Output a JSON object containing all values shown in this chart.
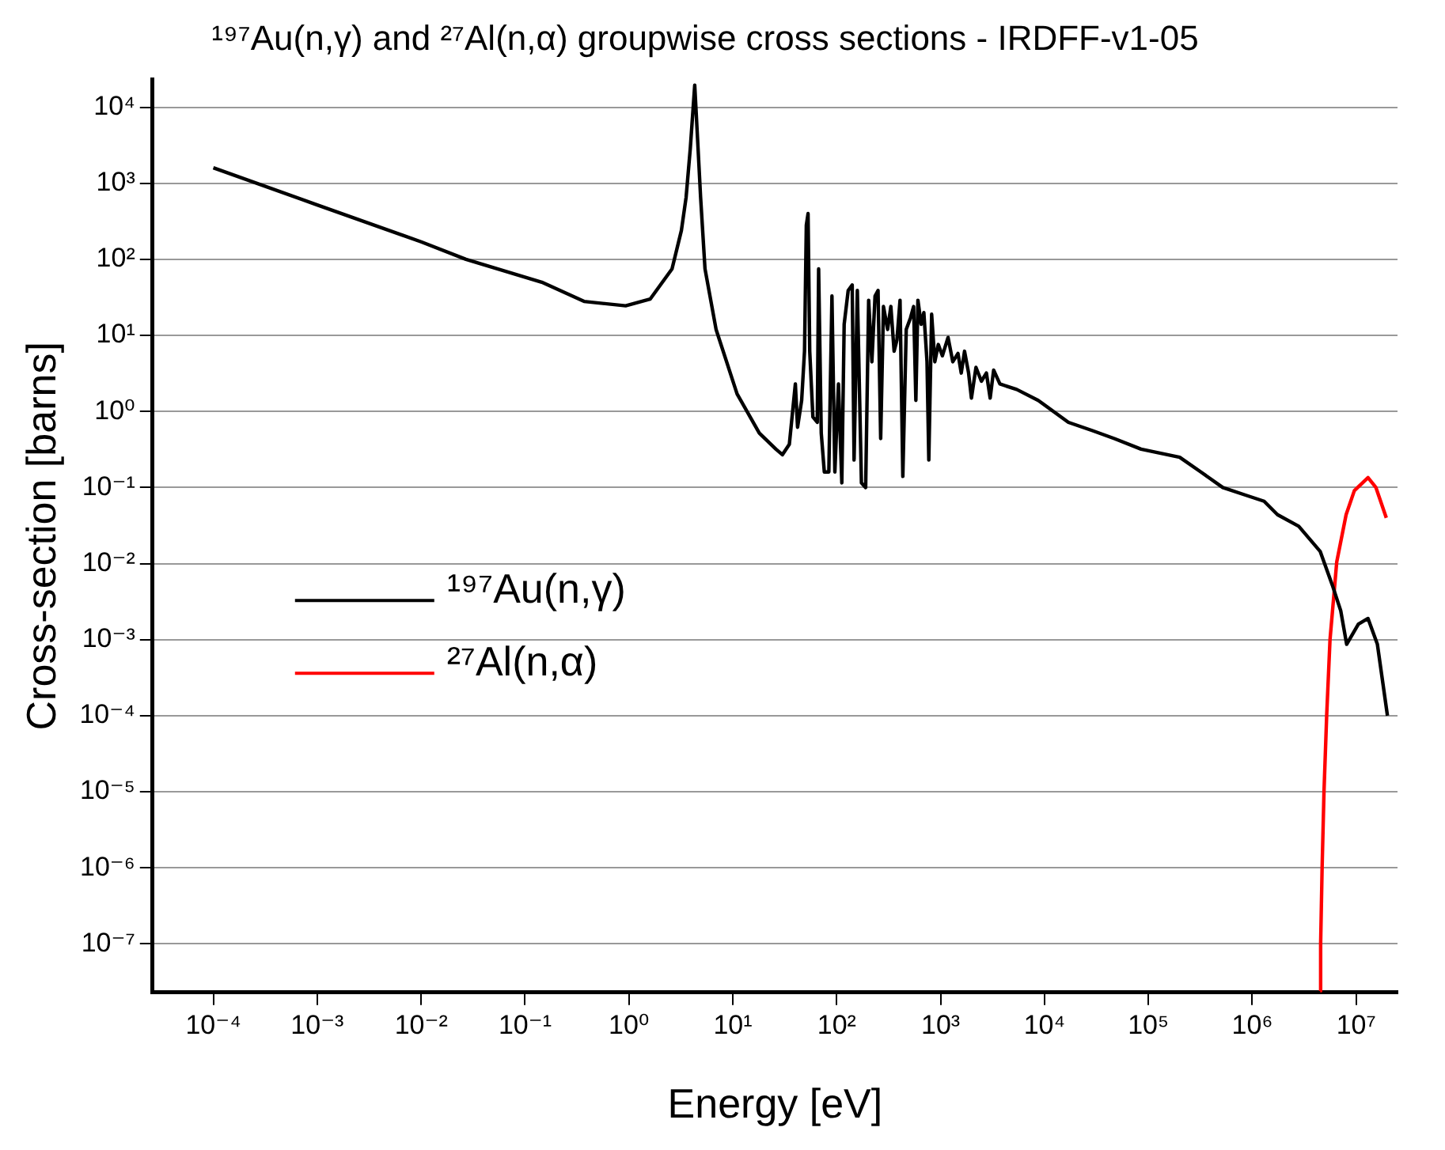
{
  "chart_data": {
    "type": "line",
    "title": "¹⁹⁷Au(n,γ) and ²⁷Al(n,α) groupwise cross sections - IRDFF-v1-05",
    "xlabel": "Energy [eV]",
    "ylabel": "Cross-section [barns]",
    "log": "xy",
    "grid": "y",
    "legend": "left",
    "xlim": [
      2.6e-05,
      25000000.0
    ],
    "ylim": [
      2.3e-08,
      23000.0
    ],
    "xticks": [
      {
        "value": 0.0001,
        "label": "10⁻⁴"
      },
      {
        "value": 0.001,
        "label": "10⁻³"
      },
      {
        "value": 0.01,
        "label": "10⁻²"
      },
      {
        "value": 0.1,
        "label": "10⁻¹"
      },
      {
        "value": 1,
        "label": "10⁰"
      },
      {
        "value": 10,
        "label": "10¹"
      },
      {
        "value": 100,
        "label": "10²"
      },
      {
        "value": 1000,
        "label": "10³"
      },
      {
        "value": 10000.0,
        "label": "10⁴"
      },
      {
        "value": 100000.0,
        "label": "10⁵"
      },
      {
        "value": 1000000.0,
        "label": "10⁶"
      },
      {
        "value": 10000000.0,
        "label": "10⁷"
      }
    ],
    "yticks": [
      {
        "value": 1e-07,
        "label": "10⁻⁷"
      },
      {
        "value": 1e-06,
        "label": "10⁻⁶"
      },
      {
        "value": 1e-05,
        "label": "10⁻⁵"
      },
      {
        "value": 0.0001,
        "label": "10⁻⁴"
      },
      {
        "value": 0.001,
        "label": "10⁻³"
      },
      {
        "value": 0.01,
        "label": "10⁻²"
      },
      {
        "value": 0.1,
        "label": "10⁻¹"
      },
      {
        "value": 1,
        "label": "10⁰"
      },
      {
        "value": 10,
        "label": "10¹"
      },
      {
        "value": 100,
        "label": "10²"
      },
      {
        "value": 1000,
        "label": "10³"
      },
      {
        "value": 10000.0,
        "label": "10⁴"
      }
    ],
    "series": [
      {
        "name": "¹⁹⁷Au(n,γ)",
        "color": "#000000",
        "x": [
          0.0001,
          0.001,
          0.01,
          0.027,
          0.145,
          0.37,
          0.93,
          1.6,
          2.6,
          3.2,
          3.55,
          3.9,
          4.3,
          4.6,
          4.9,
          5.4,
          6.9,
          11,
          18,
          26,
          30,
          35,
          40,
          42,
          46,
          49,
          51,
          53,
          55,
          59,
          65,
          67,
          71,
          76,
          84,
          90,
          96,
          104,
          112,
          118,
          129,
          141,
          147,
          158,
          173,
          190,
          203,
          218,
          234,
          250,
          265,
          282,
          309,
          332,
          357,
          380,
          407,
          433,
          467,
          513,
          550,
          578,
          605,
          650,
          690,
          740,
          770,
          820,
          880,
          950,
          1040,
          1180,
          1310,
          1470,
          1580,
          1700,
          1860,
          1980,
          2190,
          2470,
          2760,
          3000,
          3240,
          3720,
          5400,
          8700,
          17000,
          29000,
          47000,
          85000,
          200000,
          320000,
          520000,
          850000,
          1300000,
          1750000,
          2800000,
          4500000,
          5900000,
          7100000,
          8100000,
          10500000,
          13000000,
          16000000,
          20000000
        ],
        "values": [
          1600,
          520,
          170,
          100,
          50,
          28,
          24.5,
          30,
          75,
          240,
          650,
          2900,
          19500,
          3400,
          650,
          75,
          12,
          1.7,
          0.52,
          0.32,
          0.27,
          0.37,
          2.3,
          0.62,
          1.4,
          6.2,
          280,
          400,
          6.2,
          0.85,
          0.72,
          75,
          0.52,
          0.16,
          0.16,
          33,
          0.16,
          2.3,
          0.115,
          14,
          39,
          46,
          0.23,
          39,
          0.115,
          0.1,
          29,
          4.5,
          33,
          39,
          0.44,
          24,
          12,
          24,
          6.2,
          8.7,
          29,
          0.14,
          12,
          17,
          24,
          1.4,
          29,
          14,
          20,
          4.5,
          0.23,
          19,
          4.5,
          7.6,
          5.4,
          9.4,
          4.5,
          5.8,
          3.2,
          6.2,
          3.2,
          1.5,
          3.8,
          2.5,
          3.2,
          1.5,
          3.5,
          2.3,
          1.95,
          1.4,
          0.72,
          0.56,
          0.44,
          0.32,
          0.25,
          0.16,
          0.1,
          0.08,
          0.066,
          0.044,
          0.031,
          0.0145,
          0.0052,
          0.0024,
          0.00087,
          0.0016,
          0.0019,
          0.00087,
          0.0001
        ]
      },
      {
        "name": "²⁷Al(n,α)",
        "color": "#ff0000",
        "x": [
          4500000,
          4550000,
          4700000,
          4900000,
          5200000,
          5600000,
          6500000,
          8000000,
          9600000,
          13000000,
          15500000,
          19500000
        ],
        "values": [
          2.4e-08,
          1e-07,
          1e-06,
          1e-05,
          0.0001,
          0.001,
          0.0105,
          0.044,
          0.091,
          0.135,
          0.1,
          0.04
        ]
      }
    ]
  }
}
